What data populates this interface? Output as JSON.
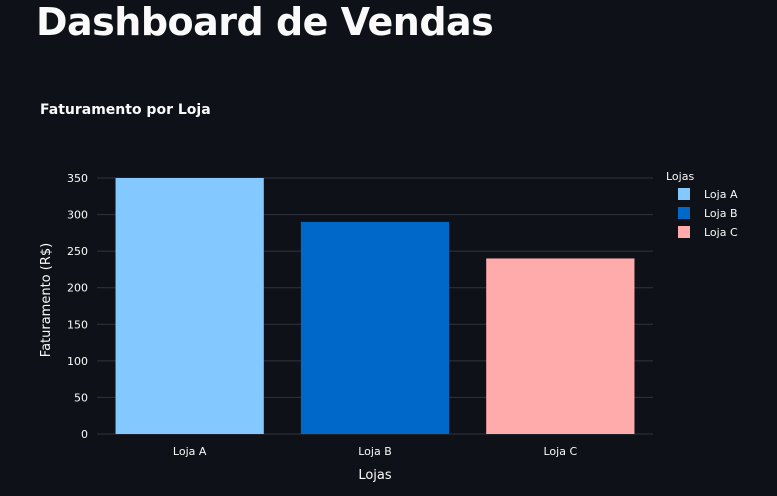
{
  "page": {
    "title": "Dashboard de Vendas"
  },
  "chart_data": {
    "type": "bar",
    "title": "Faturamento por Loja",
    "xlabel": "Lojas",
    "ylabel": "Faturamento (R$)",
    "categories": [
      "Loja A",
      "Loja B",
      "Loja C"
    ],
    "values": [
      350,
      290,
      240
    ],
    "colors": [
      "#83c9ff",
      "#0068c9",
      "#ffabab"
    ],
    "ylim": [
      0,
      350
    ],
    "yticks": [
      0,
      50,
      100,
      150,
      200,
      250,
      300,
      350
    ],
    "grid": true,
    "legend": {
      "title": "Lojas",
      "placement": "right",
      "items": [
        "Loja A",
        "Loja B",
        "Loja C"
      ]
    },
    "background": "#0e1117",
    "gridcolor": "#31333f"
  }
}
